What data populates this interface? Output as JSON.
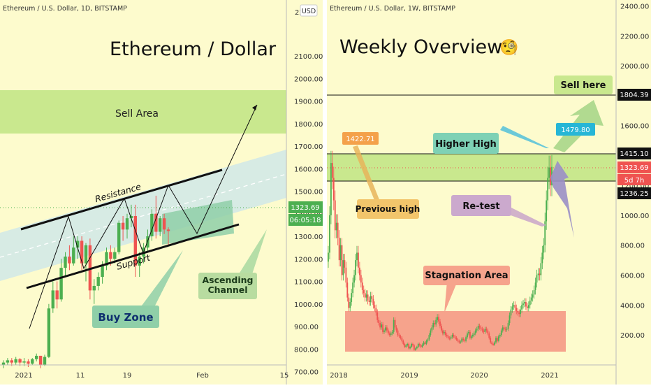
{
  "colors": {
    "panel_bg": "#fdfbcd",
    "up": "#4caf50",
    "down": "#ef5350",
    "sell_area": "#c9e88e",
    "channel": "#d3e9e7",
    "buy_zone": "#8fcfa8",
    "stagnation": "#f6a38c",
    "label_green_bg": "#7ed1b5"
  },
  "left_panel": {
    "symbol": "Ethereum / U.S. Dollar, 1D, BITSTAMP",
    "title": "Ethereum / Dollar",
    "currency": "USD",
    "price_label": "1323.69",
    "countdown": "06:05:18",
    "annotations": {
      "sell_area": "Sell Area",
      "resistance": "Resistance",
      "support": "Support",
      "ascending_line1": "Ascending",
      "ascending_line2": "Channel",
      "buy_zone": "Buy Zone"
    }
  },
  "right_panel": {
    "symbol": "Ethereum / U.S. Dollar, 1W, BITSTAMP",
    "title": "Weekly Overview",
    "title_emoji": "🧐",
    "labels": {
      "sell_here": "Sell here",
      "higher_high": "Higher High",
      "previous_high": "Previous high",
      "re_test": "Re-test",
      "stagnation": "Stagnation Area"
    },
    "price_tags": {
      "line_top": "1804.39",
      "zone_top": "1415.10",
      "current": "1323.69",
      "countdown": "5d 7h",
      "zone_bottom": "1236.25",
      "prev_high": "1422.71",
      "new_high": "1479.80"
    }
  },
  "chart_data": [
    {
      "type": "candlestick",
      "title": "Ethereum / Dollar",
      "y_ticks": [
        "2300.00",
        "2100.00",
        "2000.00",
        "1900.00",
        "1800.00",
        "1700.00",
        "1600.00",
        "1500.00",
        "1400.00",
        "1300.00",
        "1200.00",
        "1100.00",
        "1000.00",
        "900.00",
        "800.00",
        "700.00"
      ],
      "y_top_partial": "22",
      "x_ticks": [
        "2021",
        "11",
        "19",
        "Feb",
        "15"
      ],
      "ylim": [
        620,
        2380
      ],
      "candles": [
        {
          "o": 730,
          "h": 750,
          "l": 715,
          "c": 740
        },
        {
          "o": 740,
          "h": 760,
          "l": 730,
          "c": 750
        },
        {
          "o": 750,
          "h": 760,
          "l": 725,
          "c": 740
        },
        {
          "o": 740,
          "h": 765,
          "l": 730,
          "c": 755
        },
        {
          "o": 755,
          "h": 760,
          "l": 725,
          "c": 740
        },
        {
          "o": 740,
          "h": 760,
          "l": 725,
          "c": 745
        },
        {
          "o": 745,
          "h": 755,
          "l": 720,
          "c": 735
        },
        {
          "o": 735,
          "h": 760,
          "l": 730,
          "c": 755
        },
        {
          "o": 755,
          "h": 780,
          "l": 745,
          "c": 770
        },
        {
          "o": 770,
          "h": 770,
          "l": 715,
          "c": 730
        },
        {
          "o": 730,
          "h": 775,
          "l": 725,
          "c": 765
        },
        {
          "o": 765,
          "h": 1000,
          "l": 760,
          "c": 980
        },
        {
          "o": 980,
          "h": 1100,
          "l": 960,
          "c": 1060
        },
        {
          "o": 1060,
          "h": 1100,
          "l": 980,
          "c": 1020
        },
        {
          "o": 1020,
          "h": 1200,
          "l": 1010,
          "c": 1160
        },
        {
          "o": 1160,
          "h": 1230,
          "l": 1120,
          "c": 1210
        },
        {
          "o": 1210,
          "h": 1260,
          "l": 1150,
          "c": 1180
        },
        {
          "o": 1180,
          "h": 1300,
          "l": 1170,
          "c": 1250
        },
        {
          "o": 1250,
          "h": 1300,
          "l": 1200,
          "c": 1280
        },
        {
          "o": 1280,
          "h": 1300,
          "l": 1150,
          "c": 1180
        },
        {
          "o": 1180,
          "h": 1270,
          "l": 1100,
          "c": 1260
        },
        {
          "o": 1260,
          "h": 1290,
          "l": 1020,
          "c": 1060
        },
        {
          "o": 1060,
          "h": 1110,
          "l": 1000,
          "c": 1080
        },
        {
          "o": 1080,
          "h": 1140,
          "l": 1060,
          "c": 1120
        },
        {
          "o": 1120,
          "h": 1190,
          "l": 1090,
          "c": 1170
        },
        {
          "o": 1170,
          "h": 1250,
          "l": 1150,
          "c": 1230
        },
        {
          "o": 1230,
          "h": 1260,
          "l": 1170,
          "c": 1200
        },
        {
          "o": 1200,
          "h": 1250,
          "l": 1180,
          "c": 1230
        },
        {
          "o": 1230,
          "h": 1370,
          "l": 1220,
          "c": 1360
        },
        {
          "o": 1360,
          "h": 1390,
          "l": 1280,
          "c": 1330
        },
        {
          "o": 1330,
          "h": 1400,
          "l": 1290,
          "c": 1380
        },
        {
          "o": 1380,
          "h": 1440,
          "l": 1340,
          "c": 1390
        },
        {
          "o": 1390,
          "h": 1440,
          "l": 1120,
          "c": 1170
        },
        {
          "o": 1170,
          "h": 1230,
          "l": 1120,
          "c": 1210
        },
        {
          "o": 1210,
          "h": 1270,
          "l": 1180,
          "c": 1250
        },
        {
          "o": 1250,
          "h": 1330,
          "l": 1230,
          "c": 1300
        },
        {
          "o": 1300,
          "h": 1420,
          "l": 1280,
          "c": 1400
        },
        {
          "o": 1400,
          "h": 1480,
          "l": 1290,
          "c": 1320
        },
        {
          "o": 1320,
          "h": 1390,
          "l": 1300,
          "c": 1380
        },
        {
          "o": 1380,
          "h": 1400,
          "l": 1310,
          "c": 1330
        },
        {
          "o": 1330,
          "h": 1340,
          "l": 1260,
          "c": 1323.69
        }
      ]
    },
    {
      "type": "candlestick",
      "title": "Weekly Overview",
      "scale": "linear",
      "y_ticks": [
        "2400.00",
        "2200.00",
        "2000.00",
        "1800.00",
        "1600.00",
        "1400.00",
        "1200.00",
        "1000.00",
        "800.00",
        "600.00",
        "400.00",
        "200.00"
      ],
      "x_ticks": [
        "2018",
        "2019",
        "2020",
        "2021"
      ],
      "ylim": [
        90,
        2500
      ],
      "closes": [
        750,
        1000,
        1350,
        1250,
        1100,
        900,
        950,
        850,
        700,
        800,
        600,
        700,
        650,
        550,
        450,
        380,
        420,
        480,
        550,
        600,
        700,
        750,
        650,
        600,
        550,
        500,
        480,
        450,
        470,
        430,
        420,
        460,
        440,
        400,
        380,
        350,
        300,
        280,
        250,
        270,
        220,
        230,
        250,
        230,
        210,
        200,
        210,
        220,
        300,
        250,
        230,
        200,
        190,
        180,
        160,
        140,
        120,
        130,
        140,
        110,
        120,
        140,
        130,
        100,
        110,
        120,
        140,
        130,
        120,
        135,
        150,
        140,
        160,
        170,
        200,
        230,
        250,
        280,
        270,
        300,
        320,
        290,
        260,
        230,
        210,
        220,
        200,
        190,
        180,
        175,
        185,
        200,
        190,
        180,
        170,
        160,
        150,
        155,
        175,
        165,
        160,
        185,
        210,
        220,
        180,
        190,
        200,
        210,
        230,
        240,
        260,
        250,
        240,
        230,
        220,
        240,
        230,
        210,
        180,
        150,
        140,
        135,
        150,
        180,
        160,
        190,
        200,
        230,
        250,
        240,
        235,
        240,
        280,
        330,
        370,
        390,
        400,
        380,
        360,
        350,
        340,
        370,
        400,
        410,
        420,
        390,
        380,
        400,
        430,
        450,
        470,
        500,
        550,
        600,
        610,
        600,
        680,
        750,
        800,
        960,
        1100,
        1250,
        1320,
        1200,
        1323.69
      ]
    }
  ]
}
